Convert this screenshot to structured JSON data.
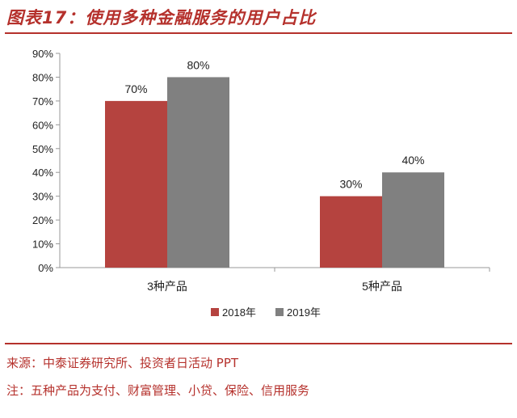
{
  "title": "图表17：使用多种金融服务的用户占比",
  "source": "来源：中泰证券研究所、投资者日活动 PPT",
  "note": "注：五种产品为支付、财富管理、小贷、保险、信用服务",
  "chart_data": {
    "type": "bar",
    "title": "",
    "xlabel": "",
    "ylabel": "",
    "categories": [
      "3种产品",
      "5种产品"
    ],
    "series": [
      {
        "name": "2018年",
        "values": [
          70,
          30
        ],
        "labels": [
          "70%",
          "30%"
        ],
        "color": "#b5433f"
      },
      {
        "name": "2019年",
        "values": [
          80,
          40
        ],
        "labels": [
          "80%",
          "40%"
        ],
        "color": "#808080"
      }
    ],
    "ylim": [
      0,
      90
    ],
    "yticks": [
      0,
      10,
      20,
      30,
      40,
      50,
      60,
      70,
      80,
      90
    ],
    "ytick_labels": [
      "0%",
      "10%",
      "20%",
      "30%",
      "40%",
      "50%",
      "60%",
      "70%",
      "80%",
      "90%"
    ],
    "grid": false,
    "legend_position": "bottom"
  }
}
